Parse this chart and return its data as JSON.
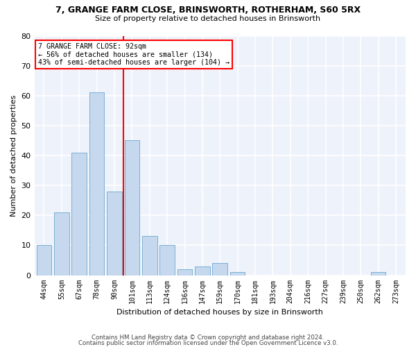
{
  "title1": "7, GRANGE FARM CLOSE, BRINSWORTH, ROTHERHAM, S60 5RX",
  "title2": "Size of property relative to detached houses in Brinsworth",
  "xlabel": "Distribution of detached houses by size in Brinsworth",
  "ylabel": "Number of detached properties",
  "categories": [
    "44sqm",
    "55sqm",
    "67sqm",
    "78sqm",
    "90sqm",
    "101sqm",
    "113sqm",
    "124sqm",
    "136sqm",
    "147sqm",
    "159sqm",
    "170sqm",
    "181sqm",
    "193sqm",
    "204sqm",
    "216sqm",
    "227sqm",
    "239sqm",
    "250sqm",
    "262sqm",
    "273sqm"
  ],
  "values": [
    10,
    21,
    41,
    61,
    28,
    45,
    13,
    10,
    2,
    3,
    4,
    1,
    0,
    0,
    0,
    0,
    0,
    0,
    0,
    1,
    0
  ],
  "bar_color": "#c5d8ed",
  "bar_edgecolor": "#7ab0d4",
  "background_color": "#eef2fb",
  "grid_color": "#ffffff",
  "red_line_x": 4.5,
  "annotation_line1": "7 GRANGE FARM CLOSE: 92sqm",
  "annotation_line2": "← 56% of detached houses are smaller (134)",
  "annotation_line3": "43% of semi-detached houses are larger (104) →",
  "annotation_box_color": "white",
  "annotation_box_edgecolor": "red",
  "ylim": [
    0,
    80
  ],
  "yticks": [
    0,
    10,
    20,
    30,
    40,
    50,
    60,
    70,
    80
  ],
  "footer1": "Contains HM Land Registry data © Crown copyright and database right 2024.",
  "footer2": "Contains public sector information licensed under the Open Government Licence v3.0."
}
